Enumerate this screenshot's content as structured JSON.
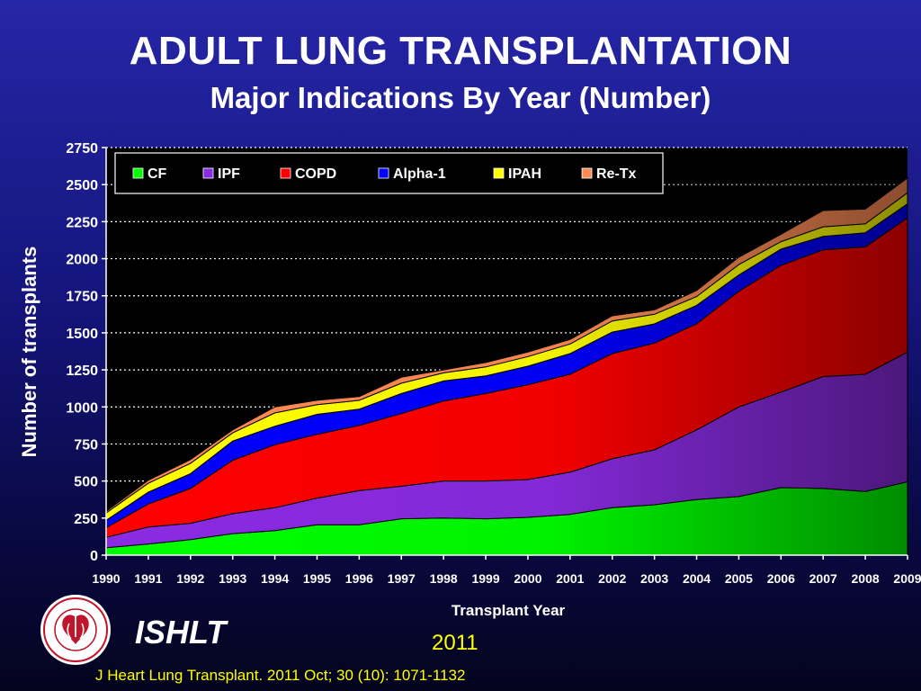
{
  "title": "ADULT LUNG TRANSPLANTATION",
  "subtitle": "Major Indications By Year (Number)",
  "footer": {
    "brand": "ISHLT",
    "year": "2011",
    "citation": "J Heart Lung Transplant. 2011 Oct; 30 (10): 1071-1132",
    "logo_text": "INTERNATIONAL SOCIETY FOR HEART & LUNG TRANSPLANTATION"
  },
  "chart_data": {
    "type": "area",
    "stacked": true,
    "xlabel": "Transplant Year",
    "ylabel": "Number of transplants",
    "ylim": [
      0,
      2750
    ],
    "yticks": [
      0,
      250,
      500,
      750,
      1000,
      1250,
      1500,
      1750,
      2000,
      2250,
      2500,
      2750
    ],
    "grid": true,
    "legend": "top-left",
    "categories": [
      "1990",
      "1991",
      "1992",
      "1993",
      "1994",
      "1995",
      "1996",
      "1997",
      "1998",
      "1999",
      "2000",
      "2001",
      "2002",
      "2003",
      "2004",
      "2005",
      "2006",
      "2007",
      "2008",
      "2009"
    ],
    "series": [
      {
        "name": "CF",
        "color": "#00ff00",
        "values": [
          50,
          75,
          105,
          145,
          165,
          205,
          205,
          245,
          250,
          245,
          255,
          275,
          320,
          340,
          375,
          395,
          455,
          450,
          430,
          495
        ]
      },
      {
        "name": "IPF",
        "color": "#8a2be2",
        "values": [
          70,
          115,
          110,
          135,
          155,
          180,
          230,
          220,
          250,
          255,
          255,
          285,
          330,
          370,
          470,
          605,
          645,
          755,
          790,
          875
        ]
      },
      {
        "name": "COPD",
        "color": "#ff0000",
        "values": [
          65,
          155,
          235,
          360,
          425,
          430,
          440,
          490,
          540,
          590,
          640,
          660,
          710,
          720,
          715,
          780,
          855,
          855,
          860,
          905
        ]
      },
      {
        "name": "Alpha-1",
        "color": "#0000ff",
        "values": [
          50,
          80,
          100,
          130,
          125,
          135,
          110,
          135,
          135,
          120,
          125,
          140,
          145,
          130,
          125,
          110,
          110,
          90,
          95,
          95
        ]
      },
      {
        "name": "IPAH",
        "color": "#ffff00",
        "values": [
          50,
          60,
          70,
          55,
          90,
          65,
          60,
          70,
          55,
          60,
          65,
          65,
          75,
          65,
          60,
          70,
          50,
          65,
          60,
          75
        ]
      },
      {
        "name": "Re-Tx",
        "color": "#ff8c55",
        "values": [
          10,
          20,
          25,
          20,
          40,
          30,
          25,
          40,
          20,
          30,
          30,
          30,
          35,
          30,
          40,
          50,
          50,
          110,
          100,
          100
        ]
      }
    ]
  }
}
